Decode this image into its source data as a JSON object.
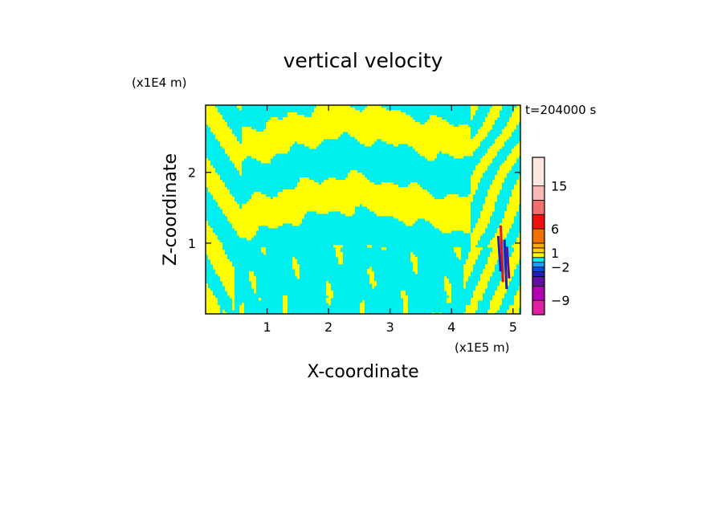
{
  "chart_data": {
    "type": "heatmap",
    "title": "vertical velocity",
    "xlabel": "X-coordinate",
    "ylabel": "Z-coordinate",
    "x_unit": "(x1E5 m)",
    "y_unit": "(x1E4 m)",
    "time_label": "t=204000 s",
    "xlim": [
      0,
      5.12
    ],
    "ylim": [
      0,
      2.95
    ],
    "x_ticks": [
      {
        "value": 1,
        "label": "1"
      },
      {
        "value": 2,
        "label": "2"
      },
      {
        "value": 3,
        "label": "3"
      },
      {
        "value": 4,
        "label": "4"
      },
      {
        "value": 5,
        "label": "5"
      }
    ],
    "y_ticks": [
      {
        "value": 1,
        "label": "1"
      },
      {
        "value": 2,
        "label": "2"
      }
    ],
    "colorbar": {
      "min": -12,
      "max": 21,
      "levels": [
        {
          "from": -12,
          "to": -9,
          "color": "#e020a0"
        },
        {
          "from": -9,
          "to": -6,
          "color": "#b000b0"
        },
        {
          "from": -6,
          "to": -4,
          "color": "#6010a0"
        },
        {
          "from": -4,
          "to": -3,
          "color": "#2020c0"
        },
        {
          "from": -3,
          "to": -2,
          "color": "#0050e0"
        },
        {
          "from": -2,
          "to": -1,
          "color": "#1aa0ff"
        },
        {
          "from": -1,
          "to": 0,
          "color": "#00f0f0"
        },
        {
          "from": 0,
          "to": 1,
          "color": "#ffff00"
        },
        {
          "from": 1,
          "to": 2,
          "color": "#ffd000"
        },
        {
          "from": 2,
          "to": 3,
          "color": "#ffaa00"
        },
        {
          "from": 3,
          "to": 6,
          "color": "#f07000"
        },
        {
          "from": 6,
          "to": 9,
          "color": "#f01010"
        },
        {
          "from": 9,
          "to": 12,
          "color": "#f07070"
        },
        {
          "from": 12,
          "to": 15,
          "color": "#f8b8b8"
        },
        {
          "from": 15,
          "to": 21,
          "color": "#fde8e0"
        }
      ],
      "tick_labels": [
        {
          "value": 15,
          "label": "15"
        },
        {
          "value": 6,
          "label": "6"
        },
        {
          "value": 1,
          "label": "1"
        },
        {
          "value": -2,
          "label": "−2"
        },
        {
          "value": -9,
          "label": "−9"
        }
      ]
    },
    "field_colors": {
      "positive": "#ffff00",
      "negative": "#00f0f0",
      "strong_up": "#f01010",
      "strong_down": "#2020c0",
      "extreme_down": "#6010a0"
    },
    "grid": false,
    "legend": "colorbar right"
  }
}
